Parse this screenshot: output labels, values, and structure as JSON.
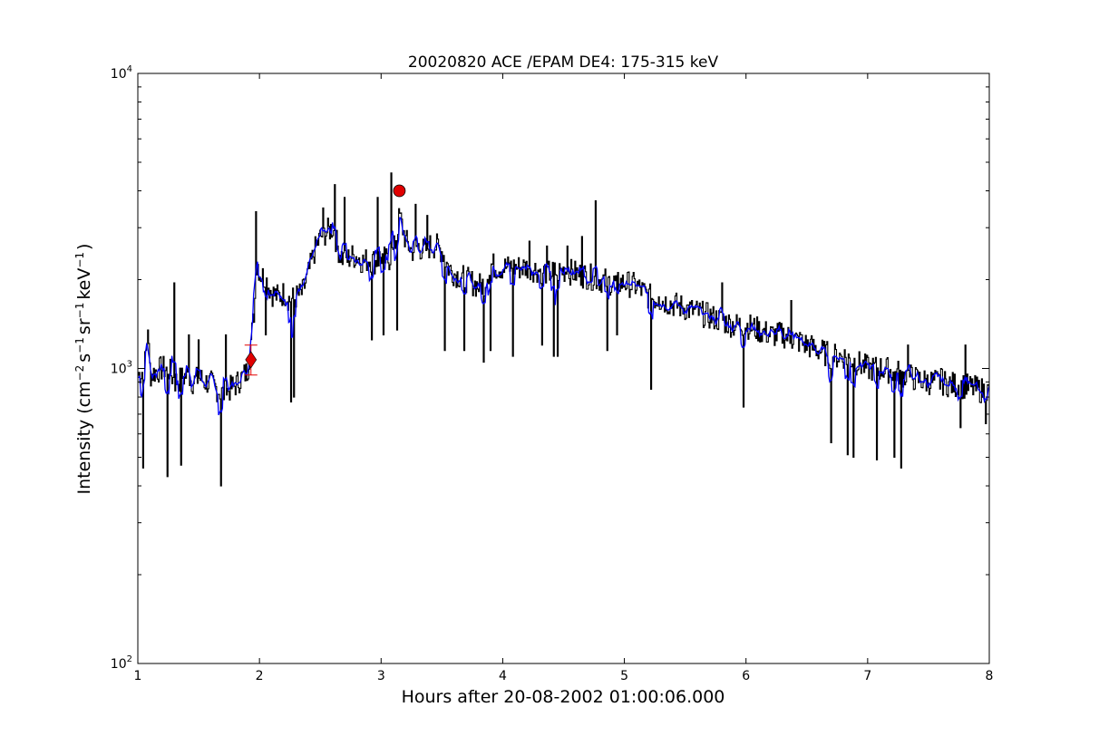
{
  "chart_data": {
    "type": "line",
    "title": "20020820 ACE /EPAM DE4: 175-315 keV",
    "xlabel": "Hours after 20-08-2002 01:00:06.000",
    "ylabel": {
      "prefix": "Intensity (cm",
      "exp1": "−2",
      "mid1": "s",
      "exp2": "−1",
      "mid2": "sr",
      "exp3": "−1",
      "mid3": "keV",
      "exp4": "−1",
      "suffix": ")"
    },
    "xlim": [
      1,
      8
    ],
    "ylim": [
      100,
      10000
    ],
    "yscale": "log",
    "xticks": [
      1,
      2,
      3,
      4,
      5,
      6,
      7,
      8
    ],
    "xtick_labels": [
      "1",
      "2",
      "3",
      "4",
      "5",
      "6",
      "7",
      "8"
    ],
    "yticks": [
      100,
      1000,
      10000
    ],
    "ytick_labels": [
      {
        "base": "10",
        "exp": "2"
      },
      {
        "base": "10",
        "exp": "3"
      },
      {
        "base": "10",
        "exp": "4"
      }
    ],
    "grid": false,
    "series": [
      {
        "style": "steps",
        "color": "#000000",
        "values": [
          [
            1.0,
            950
          ],
          [
            1.05,
            1000
          ],
          [
            1.08,
            1300
          ],
          [
            1.1,
            950
          ],
          [
            1.15,
            980
          ],
          [
            1.2,
            1000
          ],
          [
            1.25,
            1000
          ],
          [
            1.3,
            900
          ],
          [
            1.35,
            920
          ],
          [
            1.4,
            950
          ],
          [
            1.45,
            900
          ],
          [
            1.5,
            930
          ],
          [
            1.55,
            900
          ],
          [
            1.6,
            890
          ],
          [
            1.65,
            850
          ],
          [
            1.7,
            820
          ],
          [
            1.75,
            850
          ],
          [
            1.8,
            880
          ],
          [
            1.85,
            930
          ],
          [
            1.9,
            980
          ],
          [
            1.95,
            1500
          ],
          [
            1.98,
            2300
          ],
          [
            2.0,
            2100
          ],
          [
            2.05,
            2000
          ],
          [
            2.1,
            1800
          ],
          [
            2.15,
            1750
          ],
          [
            2.2,
            1800
          ],
          [
            2.25,
            1700
          ],
          [
            2.3,
            1750
          ],
          [
            2.35,
            1800
          ],
          [
            2.4,
            2100
          ],
          [
            2.45,
            2500
          ],
          [
            2.5,
            2800
          ],
          [
            2.55,
            2900
          ],
          [
            2.6,
            3000
          ],
          [
            2.65,
            2500
          ],
          [
            2.7,
            2300
          ],
          [
            2.75,
            2400
          ],
          [
            2.8,
            2400
          ],
          [
            2.85,
            2300
          ],
          [
            2.9,
            2350
          ],
          [
            2.95,
            2300
          ],
          [
            3.0,
            2400
          ],
          [
            3.05,
            2300
          ],
          [
            3.1,
            2500
          ],
          [
            3.15,
            3300
          ],
          [
            3.2,
            2700
          ],
          [
            3.25,
            2500
          ],
          [
            3.3,
            2600
          ],
          [
            3.35,
            2500
          ],
          [
            3.4,
            2600
          ],
          [
            3.45,
            2600
          ],
          [
            3.5,
            2500
          ],
          [
            3.55,
            2200
          ],
          [
            3.6,
            2100
          ],
          [
            3.65,
            2050
          ],
          [
            3.7,
            2000
          ],
          [
            3.75,
            1950
          ],
          [
            3.8,
            1900
          ],
          [
            3.85,
            1950
          ],
          [
            3.9,
            2250
          ],
          [
            3.95,
            2200
          ],
          [
            4.0,
            2200
          ],
          [
            4.1,
            2200
          ],
          [
            4.2,
            2200
          ],
          [
            4.3,
            2150
          ],
          [
            4.4,
            2100
          ],
          [
            4.5,
            2150
          ],
          [
            4.6,
            2100
          ],
          [
            4.7,
            2050
          ],
          [
            4.8,
            2000
          ],
          [
            4.9,
            1950
          ],
          [
            5.0,
            1950
          ],
          [
            5.1,
            1900
          ],
          [
            5.2,
            1750
          ],
          [
            5.3,
            1700
          ],
          [
            5.4,
            1650
          ],
          [
            5.5,
            1600
          ],
          [
            5.6,
            1550
          ],
          [
            5.7,
            1500
          ],
          [
            5.8,
            1450
          ],
          [
            5.9,
            1400
          ],
          [
            6.0,
            1400
          ],
          [
            6.1,
            1350
          ],
          [
            6.2,
            1300
          ],
          [
            6.3,
            1300
          ],
          [
            6.4,
            1250
          ],
          [
            6.5,
            1200
          ],
          [
            6.6,
            1150
          ],
          [
            6.7,
            1100
          ],
          [
            6.8,
            1100
          ],
          [
            6.9,
            1050
          ],
          [
            7.0,
            1000
          ],
          [
            7.1,
            1000
          ],
          [
            7.2,
            980
          ],
          [
            7.3,
            950
          ],
          [
            7.4,
            920
          ],
          [
            7.5,
            900
          ],
          [
            7.6,
            900
          ],
          [
            7.7,
            880
          ],
          [
            7.8,
            870
          ],
          [
            7.9,
            850
          ],
          [
            8.0,
            830
          ]
        ],
        "spikes": [
          [
            1.04,
            460
          ],
          [
            1.08,
            1350
          ],
          [
            1.24,
            430
          ],
          [
            1.3,
            1950
          ],
          [
            1.35,
            470
          ],
          [
            1.42,
            1300
          ],
          [
            1.5,
            1250
          ],
          [
            1.68,
            400
          ],
          [
            1.72,
            1300
          ],
          [
            1.97,
            3400
          ],
          [
            2.05,
            1300
          ],
          [
            2.26,
            770
          ],
          [
            2.28,
            800
          ],
          [
            2.52,
            3500
          ],
          [
            2.62,
            4200
          ],
          [
            2.7,
            3800
          ],
          [
            2.92,
            1250
          ],
          [
            2.97,
            3800
          ],
          [
            3.02,
            1300
          ],
          [
            3.08,
            4600
          ],
          [
            3.13,
            1350
          ],
          [
            3.28,
            3600
          ],
          [
            3.38,
            3300
          ],
          [
            3.52,
            1150
          ],
          [
            3.68,
            1150
          ],
          [
            3.84,
            1050
          ],
          [
            3.9,
            1150
          ],
          [
            4.08,
            1100
          ],
          [
            4.22,
            2700
          ],
          [
            4.32,
            1200
          ],
          [
            4.36,
            2600
          ],
          [
            4.42,
            1100
          ],
          [
            4.45,
            1100
          ],
          [
            4.53,
            2600
          ],
          [
            4.65,
            2800
          ],
          [
            4.76,
            3700
          ],
          [
            4.86,
            1150
          ],
          [
            4.94,
            1300
          ],
          [
            5.22,
            850
          ],
          [
            5.28,
            1750
          ],
          [
            5.8,
            1950
          ],
          [
            5.98,
            740
          ],
          [
            6.37,
            1700
          ],
          [
            6.45,
            1300
          ],
          [
            6.7,
            560
          ],
          [
            6.83,
            510
          ],
          [
            6.88,
            500
          ],
          [
            7.07,
            490
          ],
          [
            7.22,
            500
          ],
          [
            7.27,
            460
          ],
          [
            7.33,
            1200
          ],
          [
            7.6,
            1000
          ],
          [
            7.76,
            630
          ],
          [
            7.8,
            1200
          ],
          [
            7.97,
            650
          ]
        ]
      },
      {
        "style": "line",
        "color": "#0000ff",
        "smooth": true
      }
    ],
    "markers": [
      {
        "shape": "diamond",
        "x": 1.93,
        "y": 1070,
        "color": "#e00000",
        "error_y": [
          950,
          1200
        ]
      },
      {
        "shape": "circle",
        "x": 3.15,
        "y": 4000,
        "color": "#e00000"
      }
    ]
  }
}
